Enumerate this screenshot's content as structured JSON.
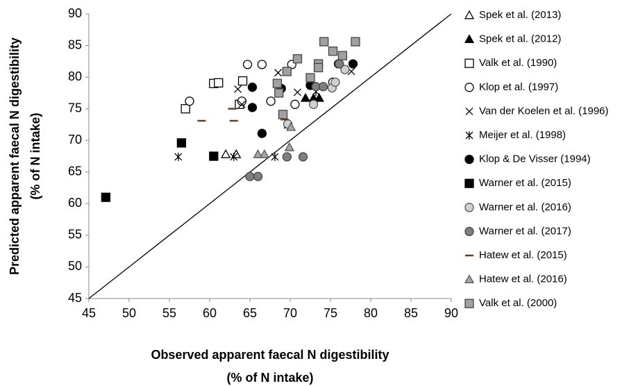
{
  "chart_data": {
    "type": "scatter",
    "xlabel": [
      "Observed apparent faecal N digestibility",
      "(% of N intake)"
    ],
    "ylabel": [
      "Predicted apparent faecal N digestibility",
      "(% of N intake)"
    ],
    "xlim": [
      45,
      90
    ],
    "ylim": [
      45,
      90
    ],
    "xticks": [
      45,
      50,
      55,
      60,
      65,
      70,
      75,
      80,
      85,
      90
    ],
    "yticks": [
      45,
      50,
      55,
      60,
      65,
      70,
      75,
      80,
      85,
      90
    ],
    "series": [
      {
        "name": "Spek et al. (2013)",
        "marker": "triangle",
        "color": "#000",
        "fill": "#fff",
        "x": [
          62.0,
          63.3,
          69.8
        ],
        "values": [
          67.8,
          67.8,
          72.5
        ]
      },
      {
        "name": "Spek et al. (2012)",
        "marker": "triangle",
        "color": "#000",
        "fill": "#000",
        "x": [
          71.9,
          72.9,
          73.6
        ],
        "values": [
          76.7,
          76.7,
          76.7
        ]
      },
      {
        "name": "Valk et al. (1990)",
        "marker": "square",
        "color": "#000",
        "fill": "#fff",
        "x": [
          57.0,
          60.5,
          61.1,
          64.1,
          63.7
        ],
        "values": [
          75.0,
          79.0,
          79.1,
          79.4,
          75.7
        ]
      },
      {
        "name": "Klop et al. (1997)",
        "marker": "circle",
        "color": "#000",
        "fill": "#fff",
        "x": [
          57.5,
          64.7,
          66.5,
          64.0,
          67.6,
          70.2,
          70.6,
          75.3
        ],
        "values": [
          76.2,
          82.0,
          82.0,
          76.2,
          76.2,
          82.0,
          75.7,
          79.2
        ]
      },
      {
        "name": "Van der Koelen et al. (1996)",
        "marker": "x",
        "color": "#000",
        "fill": "none",
        "x": [
          63.5,
          68.5,
          70.9,
          77.6,
          64.0
        ],
        "values": [
          78.1,
          80.7,
          77.6,
          80.9,
          75.7
        ]
      },
      {
        "name": "Meijer et al. (1998)",
        "marker": "asterisk",
        "color": "#000",
        "fill": "none",
        "x": [
          56.1,
          63.0,
          68.1,
          73.2
        ],
        "values": [
          67.4,
          67.4,
          67.4,
          77.7
        ]
      },
      {
        "name": "Klop & De Visser (1994)",
        "marker": "circle",
        "color": "#000",
        "fill": "#000",
        "x": [
          65.3,
          65.3,
          66.5,
          68.9,
          72.5,
          76.0,
          77.8
        ],
        "values": [
          78.4,
          75.2,
          71.1,
          78.2,
          78.7,
          82.1,
          82.1
        ]
      },
      {
        "name": "Warner et al. (2015)",
        "marker": "square",
        "color": "#000",
        "fill": "#000",
        "x": [
          47.1,
          56.5,
          60.5
        ],
        "values": [
          61.0,
          69.6,
          67.5
        ]
      },
      {
        "name": "Warner et al. (2016)",
        "marker": "circle",
        "color": "#555",
        "fill": "#d0d0d0",
        "x": [
          69.7,
          72.9,
          75.2,
          75.6,
          76.8
        ],
        "values": [
          72.6,
          75.7,
          78.3,
          79.2,
          81.2
        ]
      },
      {
        "name": "Warner et al. (2017)",
        "marker": "circle",
        "color": "#444",
        "fill": "#7f7f7f",
        "x": [
          65.0,
          66.0,
          69.6,
          71.6,
          73.2,
          74.1,
          76.1
        ],
        "values": [
          64.3,
          64.3,
          67.4,
          67.4,
          78.5,
          78.5,
          82.1
        ]
      },
      {
        "name": "Hatew et al. (2015)",
        "marker": "dash",
        "color": "#6b3a1f",
        "fill": "none",
        "x": [
          59.0,
          63.0,
          62.8,
          69.3
        ],
        "values": [
          73.1,
          73.1,
          75.0,
          73.3
        ]
      },
      {
        "name": "Hatew et al. (2016)",
        "marker": "triangle",
        "color": "#555",
        "fill": "#a6a6a6",
        "x": [
          66.0,
          66.8,
          69.9,
          70.1
        ],
        "values": [
          67.8,
          67.8,
          68.9,
          72.1
        ]
      },
      {
        "name": "Valk et al. (2000)",
        "marker": "square",
        "color": "#444",
        "fill": "#a0a0a0",
        "x": [
          74.2,
          75.3,
          76.5,
          78.1,
          70.9,
          73.5,
          73.5,
          72.5,
          69.6,
          68.4,
          68.6,
          69.1
        ],
        "values": [
          85.6,
          84.1,
          83.4,
          85.6,
          82.9,
          82.1,
          81.5,
          79.9,
          80.9,
          79.0,
          77.5,
          74.1
        ]
      }
    ]
  }
}
